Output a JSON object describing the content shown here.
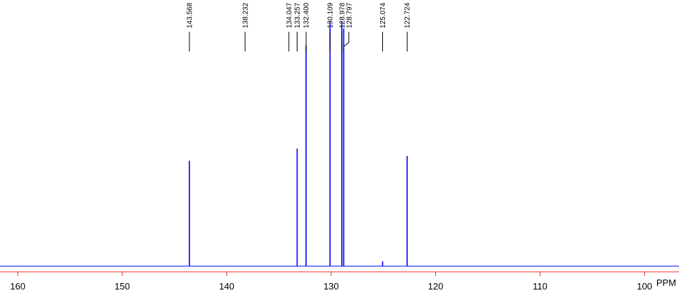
{
  "chart_data": {
    "type": "spectrum",
    "x_label": "PPM",
    "x": [
      143.568,
      138.232,
      134.047,
      133.257,
      132.4,
      130.109,
      128.978,
      128.797,
      125.074,
      122.724
    ],
    "values": [
      43,
      0,
      0,
      48,
      90,
      100,
      100,
      97,
      2,
      45
    ],
    "value_labels": [
      "143.568",
      "138.232",
      "134.047",
      "133.257",
      "132.400",
      "130.109",
      "128.978",
      "128.797",
      "125.074",
      "122.724"
    ],
    "color": "#0000ff",
    "axis_color": "#e03030",
    "xlim": [
      161.7,
      96.7
    ],
    "ylim": [
      0,
      100
    ],
    "xticks": [
      160,
      150,
      140,
      130,
      120,
      110,
      100
    ]
  }
}
